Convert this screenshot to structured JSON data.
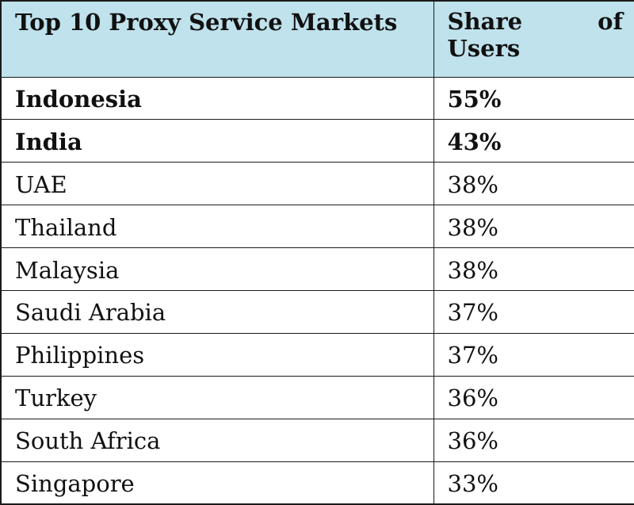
{
  "chart_data": {
    "type": "table",
    "columns": [
      "Top 10 Proxy Service Markets",
      "Share of Users"
    ],
    "rows": [
      {
        "market": "Indonesia",
        "share": "55%",
        "bold": true
      },
      {
        "market": "India",
        "share": "43%",
        "bold": true
      },
      {
        "market": "UAE",
        "share": "38%",
        "bold": false
      },
      {
        "market": "Thailand",
        "share": "38%",
        "bold": false
      },
      {
        "market": "Malaysia",
        "share": "38%",
        "bold": false
      },
      {
        "market": "Saudi Arabia",
        "share": "37%",
        "bold": false
      },
      {
        "market": "Philippines",
        "share": "37%",
        "bold": false
      },
      {
        "market": "Turkey",
        "share": "36%",
        "bold": false
      },
      {
        "market": "South Africa",
        "share": "36%",
        "bold": false
      },
      {
        "market": "Singapore",
        "share": "33%",
        "bold": false
      }
    ],
    "values": [
      55,
      43,
      38,
      38,
      38,
      37,
      37,
      36,
      36,
      33
    ],
    "header_color": "#bfe2ec"
  }
}
